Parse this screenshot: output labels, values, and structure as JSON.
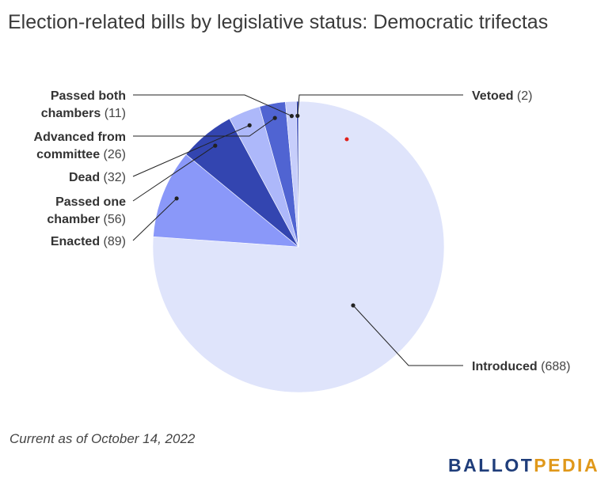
{
  "title": "Election-related bills by legislative status: Democratic trifectas",
  "note": "Current as of October 14, 2022",
  "logo": {
    "part1": "BALLOT",
    "part2": "PEDIA"
  },
  "chart_data": {
    "type": "pie",
    "title": "Election-related bills by legislative status: Democratic trifectas",
    "slices": [
      {
        "label": "Introduced",
        "value": 688,
        "value_text": "(688)",
        "color": "#dfe4fb"
      },
      {
        "label": "Enacted",
        "value": 89,
        "value_text": "(89)",
        "color": "#8a98f9"
      },
      {
        "label": "Passed one chamber",
        "value": 56,
        "value_text": "(56)",
        "color": "#3345b0"
      },
      {
        "label": "Dead",
        "value": 32,
        "value_text": "(32)",
        "color": "#adb8fa"
      },
      {
        "label": "Advanced from committee",
        "value": 26,
        "value_text": "(26)",
        "color": "#5064d2"
      },
      {
        "label": "Passed both chambers",
        "value": 11,
        "value_text": "(11)",
        "color": "#c7cefb"
      },
      {
        "label": "Vetoed",
        "value": 2,
        "value_text": "(2)",
        "color": "#3a4cb8"
      }
    ]
  }
}
